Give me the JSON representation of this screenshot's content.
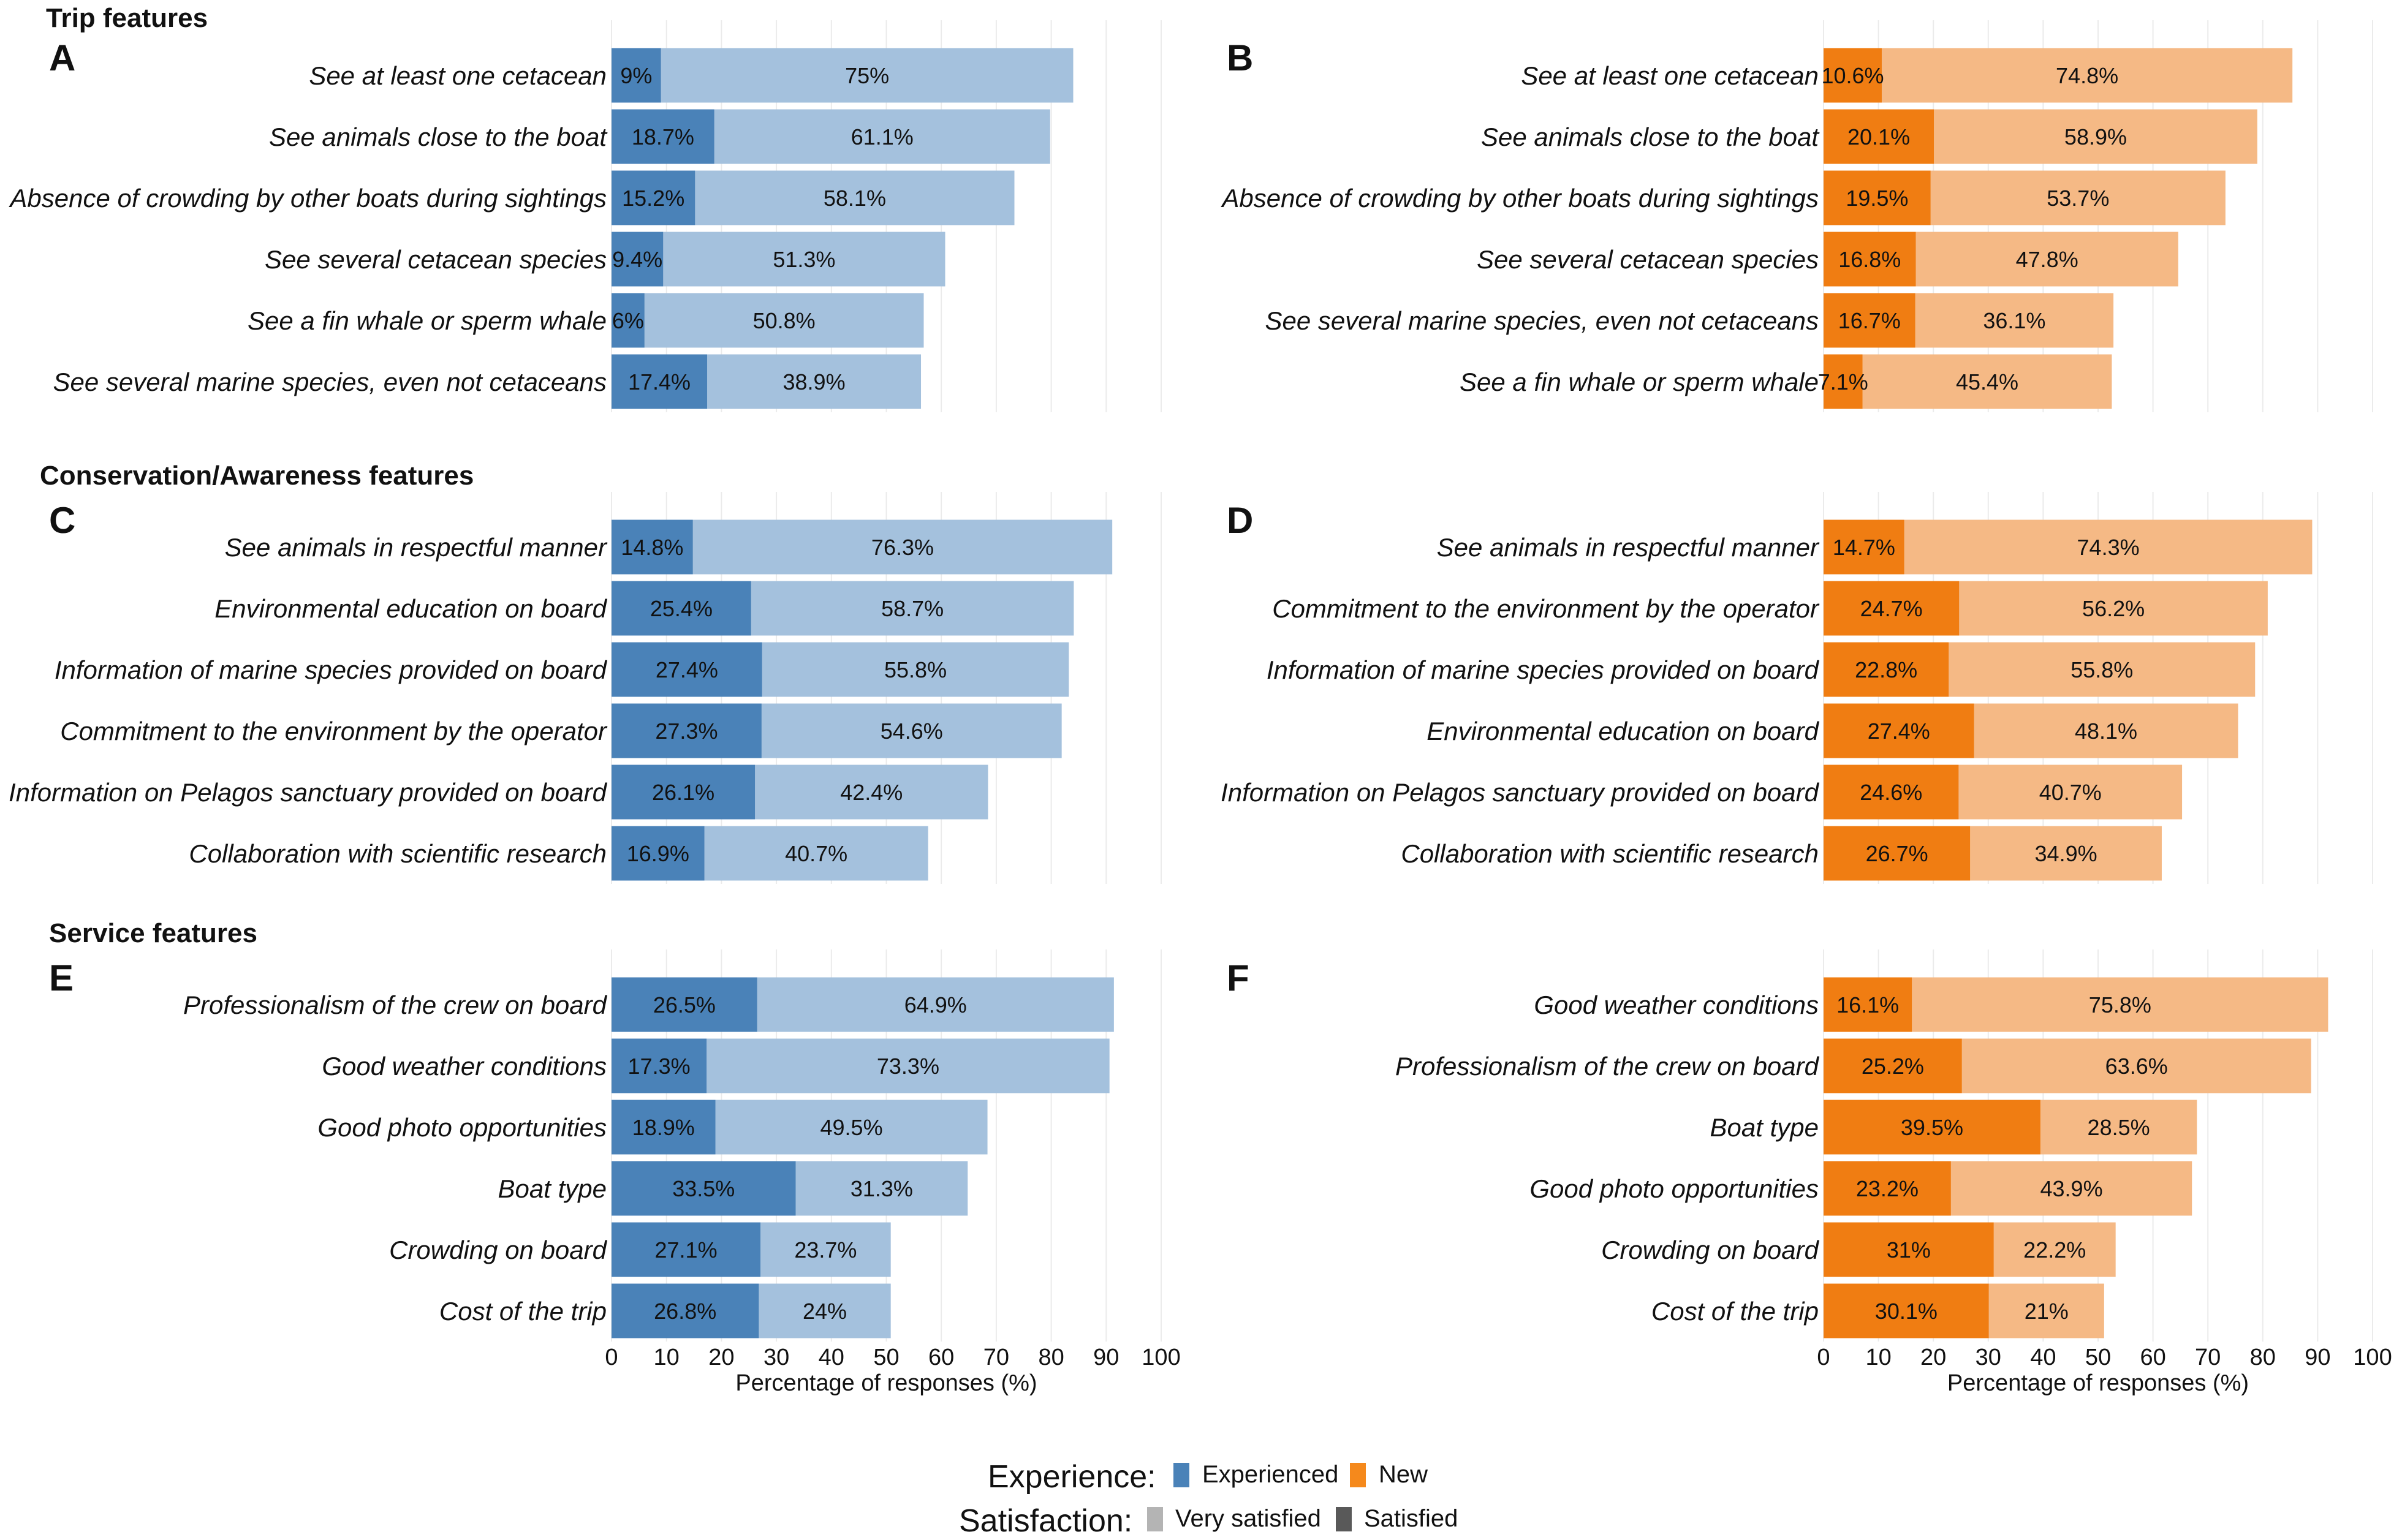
{
  "sections": [
    {
      "title": "Trip features"
    },
    {
      "title": "Conservation/Awareness features"
    },
    {
      "title": "Service features"
    }
  ],
  "colors": {
    "experienced_satisfied": "#4a82b8",
    "experienced_very_satisfied": "#a4c1dd",
    "new_satisfied": "#f07d12",
    "new_very_satisfied": "#f5b985",
    "gridline": "#ebebeb",
    "text": "#111111"
  },
  "chart_data": [
    {
      "type": "bar",
      "orientation": "horizontal",
      "stacked": true,
      "panel": "A",
      "group": "Experienced",
      "categories": [
        "See at least one cetacean",
        "See animals close to the boat",
        "Absence of crowding by other boats during sightings",
        "See several cetacean species",
        "See a fin whale or sperm whale",
        "See several marine species, even not cetaceans"
      ],
      "series": [
        {
          "name": "Satisfied",
          "values": [
            9,
            18.7,
            15.2,
            9.4,
            6,
            17.4
          ],
          "labels": [
            "9%",
            "18.7%",
            "15.2%",
            "9.4%",
            "6%",
            "17.4%"
          ]
        },
        {
          "name": "Very satisfied",
          "values": [
            75,
            61.1,
            58.1,
            51.3,
            50.8,
            38.9
          ],
          "labels": [
            "75%",
            "61.1%",
            "58.1%",
            "51.3%",
            "50.8%",
            "38.9%"
          ]
        }
      ],
      "xlim": [
        0,
        100
      ],
      "xticks": [
        "0",
        "10",
        "20",
        "30",
        "40",
        "50",
        "60",
        "70",
        "80",
        "90",
        "100"
      ],
      "xlabel": ""
    },
    {
      "type": "bar",
      "orientation": "horizontal",
      "stacked": true,
      "panel": "B",
      "group": "New",
      "categories": [
        "See at least one cetacean",
        "See animals close to the boat",
        "Absence of crowding by other boats during sightings",
        "See several cetacean species",
        "See several marine species, even not cetaceans",
        "See a fin whale or sperm whale"
      ],
      "series": [
        {
          "name": "Satisfied",
          "values": [
            10.6,
            20.1,
            19.5,
            16.8,
            16.7,
            7.1
          ],
          "labels": [
            "10.6%",
            "20.1%",
            "19.5%",
            "16.8%",
            "16.7%",
            "7.1%"
          ]
        },
        {
          "name": "Very satisfied",
          "values": [
            74.8,
            58.9,
            53.7,
            47.8,
            36.1,
            45.4
          ],
          "labels": [
            "74.8%",
            "58.9%",
            "53.7%",
            "47.8%",
            "36.1%",
            "45.4%"
          ]
        }
      ],
      "xlim": [
        0,
        100
      ],
      "xticks": [
        "0",
        "10",
        "20",
        "30",
        "40",
        "50",
        "60",
        "70",
        "80",
        "90",
        "100"
      ],
      "xlabel": ""
    },
    {
      "type": "bar",
      "orientation": "horizontal",
      "stacked": true,
      "panel": "C",
      "group": "Experienced",
      "categories": [
        "See animals in respectful manner",
        "Environmental education on board",
        "Information of marine species provided on board",
        "Commitment to the environment by the operator",
        "Information on Pelagos sanctuary provided on board",
        "Collaboration with scientific research"
      ],
      "series": [
        {
          "name": "Satisfied",
          "values": [
            14.8,
            25.4,
            27.4,
            27.3,
            26.1,
            16.9
          ],
          "labels": [
            "14.8%",
            "25.4%",
            "27.4%",
            "27.3%",
            "26.1%",
            "16.9%"
          ]
        },
        {
          "name": "Very satisfied",
          "values": [
            76.3,
            58.7,
            55.8,
            54.6,
            42.4,
            40.7
          ],
          "labels": [
            "76.3%",
            "58.7%",
            "55.8%",
            "54.6%",
            "42.4%",
            "40.7%"
          ]
        }
      ],
      "xlim": [
        0,
        100
      ],
      "xticks": [
        "0",
        "10",
        "20",
        "30",
        "40",
        "50",
        "60",
        "70",
        "80",
        "90",
        "100"
      ],
      "xlabel": ""
    },
    {
      "type": "bar",
      "orientation": "horizontal",
      "stacked": true,
      "panel": "D",
      "group": "New",
      "categories": [
        "See animals in respectful manner",
        "Commitment to the environment by the operator",
        "Information of marine species provided on board",
        "Environmental education on board",
        "Information on Pelagos sanctuary provided on board",
        "Collaboration with scientific research"
      ],
      "series": [
        {
          "name": "Satisfied",
          "values": [
            14.7,
            24.7,
            22.8,
            27.4,
            24.6,
            26.7
          ],
          "labels": [
            "14.7%",
            "24.7%",
            "22.8%",
            "27.4%",
            "24.6%",
            "26.7%"
          ]
        },
        {
          "name": "Very satisfied",
          "values": [
            74.3,
            56.2,
            55.8,
            48.1,
            40.7,
            34.9
          ],
          "labels": [
            "74.3%",
            "56.2%",
            "55.8%",
            "48.1%",
            "40.7%",
            "34.9%"
          ]
        }
      ],
      "xlim": [
        0,
        100
      ],
      "xticks": [
        "0",
        "10",
        "20",
        "30",
        "40",
        "50",
        "60",
        "70",
        "80",
        "90",
        "100"
      ],
      "xlabel": ""
    },
    {
      "type": "bar",
      "orientation": "horizontal",
      "stacked": true,
      "panel": "E",
      "group": "Experienced",
      "categories": [
        "Professionalism of the crew on board",
        "Good weather conditions",
        "Good photo opportunities",
        "Boat type",
        "Crowding on board",
        "Cost of the trip"
      ],
      "series": [
        {
          "name": "Satisfied",
          "values": [
            26.5,
            17.3,
            18.9,
            33.5,
            27.1,
            26.8
          ],
          "labels": [
            "26.5%",
            "17.3%",
            "18.9%",
            "33.5%",
            "27.1%",
            "26.8%"
          ]
        },
        {
          "name": "Very satisfied",
          "values": [
            64.9,
            73.3,
            49.5,
            31.3,
            23.7,
            24
          ],
          "labels": [
            "64.9%",
            "73.3%",
            "49.5%",
            "31.3%",
            "23.7%",
            "24%"
          ]
        }
      ],
      "xlim": [
        0,
        100
      ],
      "xticks": [
        "0",
        "10",
        "20",
        "30",
        "40",
        "50",
        "60",
        "70",
        "80",
        "90",
        "100"
      ],
      "xlabel": "Percentage of responses (%)"
    },
    {
      "type": "bar",
      "orientation": "horizontal",
      "stacked": true,
      "panel": "F",
      "group": "New",
      "categories": [
        "Good weather conditions",
        "Professionalism of the crew on board",
        "Boat type",
        "Good photo opportunities",
        "Crowding on board",
        "Cost of the trip"
      ],
      "series": [
        {
          "name": "Satisfied",
          "values": [
            16.1,
            25.2,
            39.5,
            23.2,
            31,
            30.1
          ],
          "labels": [
            "16.1%",
            "25.2%",
            "39.5%",
            "23.2%",
            "31%",
            "30.1%"
          ]
        },
        {
          "name": "Very satisfied",
          "values": [
            75.8,
            63.6,
            28.5,
            43.9,
            22.2,
            21
          ],
          "labels": [
            "75.8%",
            "63.6%",
            "28.5%",
            "43.9%",
            "22.2%",
            "21%"
          ]
        }
      ],
      "xlim": [
        0,
        100
      ],
      "xticks": [
        "0",
        "10",
        "20",
        "30",
        "40",
        "50",
        "60",
        "70",
        "80",
        "90",
        "100"
      ],
      "xlabel": "Percentage of responses (%)"
    }
  ],
  "legend": {
    "experience_title": "Experience:",
    "experience_items": [
      "Experienced",
      "New"
    ],
    "satisfaction_title": "Satisfaction:",
    "satisfaction_items": [
      "Very satisfied",
      "Satisfied"
    ],
    "experience_colors": [
      "#4a82b8",
      "#f5891c"
    ],
    "satisfaction_colors": [
      "#b4b4b4",
      "#595959"
    ]
  }
}
